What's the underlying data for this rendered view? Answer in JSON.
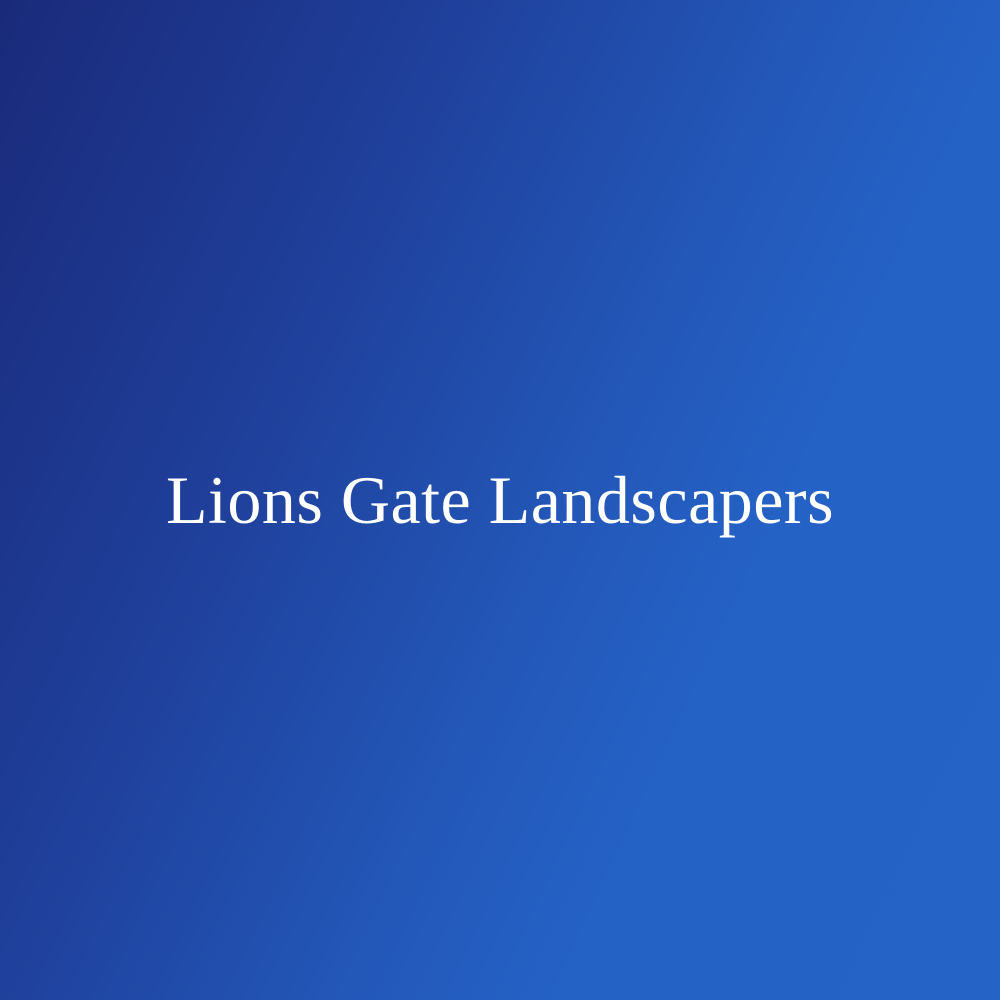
{
  "brand": {
    "name": "Lions Gate Landscapers"
  },
  "colors": {
    "gradient_start": "#1a2a7a",
    "gradient_end": "#2563c7",
    "text": "#ffffff"
  }
}
